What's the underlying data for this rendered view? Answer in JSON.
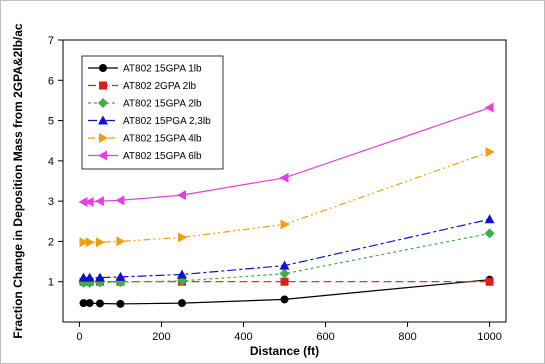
{
  "chart_data": {
    "type": "line",
    "title": "",
    "xlabel": "Distance (ft)",
    "ylabel": "Fraction Change in Deposition Mass from 2GPA&2lb/ac",
    "xlim": [
      -40,
      1040
    ],
    "ylim": [
      0,
      7
    ],
    "xticks": [
      0,
      200,
      400,
      600,
      800,
      1000
    ],
    "yticks": [
      1,
      2,
      3,
      4,
      5,
      6,
      7
    ],
    "grid": false,
    "legend_position": "top-left",
    "series": [
      {
        "name": "AT802 15GPA 1lb",
        "color": "#000000",
        "dash": "none",
        "marker": "circle",
        "x": [
          10,
          25,
          50,
          100,
          250,
          500,
          1000
        ],
        "y": [
          0.47,
          0.47,
          0.46,
          0.45,
          0.47,
          0.56,
          1.05
        ]
      },
      {
        "name": "AT802 2GPA 2lb",
        "color": "#dd1c1c",
        "dash": "8,4",
        "marker": "square",
        "x": [
          10,
          25,
          50,
          100,
          250,
          500,
          1000
        ],
        "y": [
          1.0,
          1.0,
          1.0,
          1.0,
          1.0,
          1.0,
          1.0
        ]
      },
      {
        "name": "AT802 15GPA 2lb",
        "color": "#3cb043",
        "dash": "3,3",
        "marker": "diamond",
        "x": [
          10,
          25,
          50,
          100,
          250,
          500,
          1000
        ],
        "y": [
          0.97,
          0.97,
          0.98,
          0.99,
          1.02,
          1.2,
          2.2
        ]
      },
      {
        "name": "AT802 15PGA 2,3lb",
        "color": "#1010d0",
        "dash": "9,3,3,3",
        "marker": "triangle-up",
        "x": [
          10,
          25,
          50,
          100,
          250,
          500,
          1000
        ],
        "y": [
          1.1,
          1.1,
          1.1,
          1.12,
          1.18,
          1.4,
          2.55
        ]
      },
      {
        "name": "AT802 15GPA 4lb",
        "color": "#f39c12",
        "dash": "7,3,2,3,2,3",
        "marker": "triangle-right",
        "x": [
          10,
          25,
          50,
          100,
          250,
          500,
          1000
        ],
        "y": [
          1.98,
          1.98,
          1.98,
          2.0,
          2.1,
          2.42,
          4.22
        ]
      },
      {
        "name": "AT802 15GPA 6lb",
        "color": "#e83ee0",
        "dash": "none",
        "marker": "triangle-left",
        "x": [
          10,
          25,
          50,
          100,
          250,
          500,
          1000
        ],
        "y": [
          2.98,
          2.98,
          3.0,
          3.02,
          3.15,
          3.58,
          5.32
        ]
      }
    ]
  }
}
